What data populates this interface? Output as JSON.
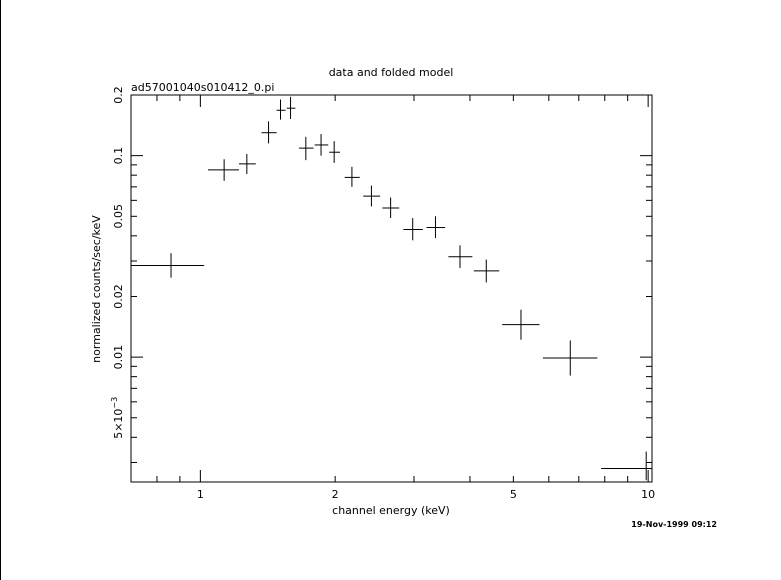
{
  "chart_data": {
    "type": "scatter",
    "title": "data and folded model",
    "subtitle": "ad57001040s010412_0.pi",
    "xlabel": "channel energy (keV)",
    "ylabel": "normalized counts/sec/keV",
    "xscale": "log",
    "yscale": "log",
    "xlim": [
      0.7,
      10.2
    ],
    "ylim": [
      0.0024,
      0.2
    ],
    "x_tick_labels": [
      {
        "value": 1,
        "label": "1"
      },
      {
        "value": 2,
        "label": "2"
      },
      {
        "value": 5,
        "label": "5"
      },
      {
        "value": 10,
        "label": "10"
      }
    ],
    "y_tick_labels": [
      {
        "value": 0.2,
        "label": "0.2"
      },
      {
        "value": 0.1,
        "label": "0.1"
      },
      {
        "value": 0.05,
        "label": "0.05"
      },
      {
        "value": 0.02,
        "label": "0.02"
      },
      {
        "value": 0.01,
        "label": "0.01"
      },
      {
        "value": 0.005,
        "label": "5×10",
        "sup": "−3"
      }
    ],
    "series": [
      {
        "points": [
          {
            "x": 0.86,
            "xlo": 0.69,
            "xhi": 1.02,
            "y": 0.0285,
            "ylo": 0.0248,
            "yhi": 0.0328
          },
          {
            "x": 1.13,
            "xlo": 1.04,
            "xhi": 1.22,
            "y": 0.085,
            "ylo": 0.075,
            "yhi": 0.096
          },
          {
            "x": 1.27,
            "xlo": 1.22,
            "xhi": 1.33,
            "y": 0.091,
            "ylo": 0.081,
            "yhi": 0.102
          },
          {
            "x": 1.42,
            "xlo": 1.37,
            "xhi": 1.48,
            "y": 0.13,
            "ylo": 0.115,
            "yhi": 0.148
          },
          {
            "x": 1.51,
            "xlo": 1.48,
            "xhi": 1.55,
            "y": 0.168,
            "ylo": 0.151,
            "yhi": 0.19
          },
          {
            "x": 1.59,
            "xlo": 1.56,
            "xhi": 1.63,
            "y": 0.172,
            "ylo": 0.152,
            "yhi": 0.196
          },
          {
            "x": 1.72,
            "xlo": 1.66,
            "xhi": 1.79,
            "y": 0.109,
            "ylo": 0.095,
            "yhi": 0.124
          },
          {
            "x": 1.86,
            "xlo": 1.8,
            "xhi": 1.93,
            "y": 0.113,
            "ylo": 0.1,
            "yhi": 0.128
          },
          {
            "x": 1.99,
            "xlo": 1.94,
            "xhi": 2.05,
            "y": 0.104,
            "ylo": 0.092,
            "yhi": 0.118
          },
          {
            "x": 2.18,
            "xlo": 2.1,
            "xhi": 2.27,
            "y": 0.078,
            "ylo": 0.07,
            "yhi": 0.088
          },
          {
            "x": 2.41,
            "xlo": 2.31,
            "xhi": 2.52,
            "y": 0.063,
            "ylo": 0.056,
            "yhi": 0.071
          },
          {
            "x": 2.66,
            "xlo": 2.55,
            "xhi": 2.78,
            "y": 0.055,
            "ylo": 0.049,
            "yhi": 0.062
          },
          {
            "x": 2.98,
            "xlo": 2.84,
            "xhi": 3.14,
            "y": 0.043,
            "ylo": 0.038,
            "yhi": 0.049
          },
          {
            "x": 3.35,
            "xlo": 3.2,
            "xhi": 3.52,
            "y": 0.044,
            "ylo": 0.039,
            "yhi": 0.05
          },
          {
            "x": 3.8,
            "xlo": 3.58,
            "xhi": 4.05,
            "y": 0.0315,
            "ylo": 0.0277,
            "yhi": 0.0359
          },
          {
            "x": 4.35,
            "xlo": 4.08,
            "xhi": 4.65,
            "y": 0.0268,
            "ylo": 0.0235,
            "yhi": 0.0305
          },
          {
            "x": 5.2,
            "xlo": 4.72,
            "xhi": 5.72,
            "y": 0.0145,
            "ylo": 0.0122,
            "yhi": 0.0172
          },
          {
            "x": 6.7,
            "xlo": 5.82,
            "xhi": 7.7,
            "y": 0.0099,
            "ylo": 0.0081,
            "yhi": 0.0121
          },
          {
            "x": 9.9,
            "xlo": 7.85,
            "xhi": 12.0,
            "y": 0.0028,
            "ylo": 0.00245,
            "yhi": 0.0034
          }
        ]
      }
    ]
  },
  "footer": {
    "timestamp": "19-Nov-1999 09:12"
  }
}
